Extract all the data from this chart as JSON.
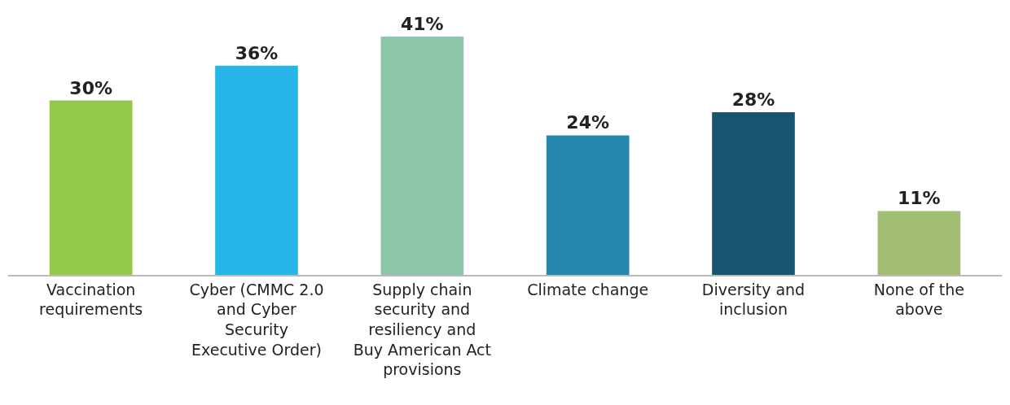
{
  "chart_data": {
    "type": "bar",
    "categories": [
      "Vaccination requirements",
      "Cyber (CMMC 2.0 and Cyber Security Executive Order)",
      "Supply chain security and resiliency and Buy American Act provisions",
      "Climate change",
      "Diversity and inclusion",
      "None of the above"
    ],
    "values": [
      30,
      36,
      41,
      24,
      28,
      11
    ],
    "colors": [
      "#92c94a",
      "#27b4e8",
      "#8dc5a9",
      "#2587ad",
      "#17556e",
      "#a3bf76"
    ],
    "value_labels": [
      "30%",
      "36%",
      "41%",
      "24%",
      "28%",
      "11%"
    ],
    "legend": false
  }
}
